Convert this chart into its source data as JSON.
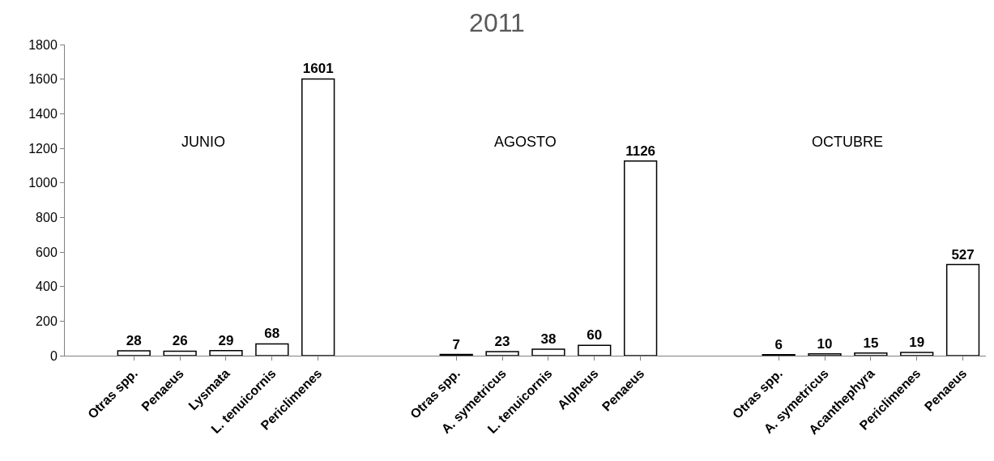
{
  "chart_data": {
    "type": "bar",
    "title": "2011",
    "categories": [
      null,
      "Otras spp.",
      "Penaeus",
      "Lysmata",
      "L. tenuicornis",
      "Periclimenes",
      null,
      null,
      "Otras spp.",
      "A. symetricus",
      "L. tenuicornis",
      "Alpheus",
      "Penaeus",
      null,
      null,
      "Otras spp.",
      "A. symetricus",
      "Acanthephyra",
      "Periclimenes",
      "Penaeus"
    ],
    "values": [
      null,
      28,
      26,
      29,
      68,
      1601,
      null,
      null,
      7,
      23,
      38,
      60,
      1126,
      null,
      null,
      6,
      10,
      15,
      19,
      527
    ],
    "color": "#ffffff",
    "ylim": [
      0,
      1800
    ],
    "yticks": [
      0,
      200,
      400,
      600,
      800,
      1000,
      1200,
      1400,
      1600,
      1800
    ],
    "legend": false,
    "data_labels": true,
    "annotations": [
      "JUNIO",
      "AGOSTO",
      "OCTUBRE"
    ]
  }
}
